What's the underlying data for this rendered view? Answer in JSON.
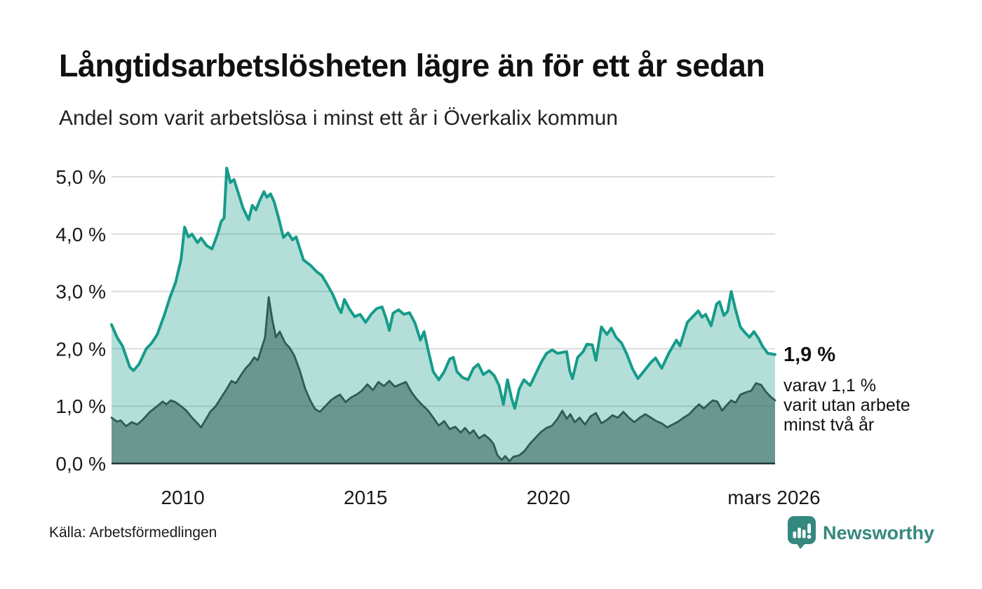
{
  "header": {
    "title": "Långtidsarbetslösheten lägre än för ett år sedan",
    "subtitle": "Andel som varit arbetslösa i minst ett år i Överkalix kommun"
  },
  "annotations": {
    "latest_value": "1,9 %",
    "sub_lines": [
      "varav 1,1 %",
      "varit utan arbete",
      "minst två år"
    ]
  },
  "footer": {
    "source": "Källa: Arbetsförmedlingen",
    "brand": "Newsworthy",
    "brand_logo_icon": "speech-bubble-bar-chart-icon"
  },
  "colors": {
    "accent": "#179b8a",
    "accent_fill": "#179b8a",
    "dark_series": "#2e5c55",
    "brand": "#35887f",
    "grid": "#dcdcdc",
    "axis": "#1f3733",
    "text": "#1a1a1a"
  },
  "chart_data": {
    "type": "area",
    "title": "Långtidsarbetslösheten lägre än för ett år sedan",
    "subtitle": "Andel som varit arbetslösa i minst ett år i Överkalix kommun",
    "xlabel": "",
    "ylabel": "",
    "unit": "%",
    "grid": true,
    "legend_position": "none",
    "x_domain": [
      2008.05,
      2026.2
    ],
    "ylim": [
      0,
      5.3
    ],
    "y_ticks": [
      {
        "value": 0,
        "label": "0,0 %"
      },
      {
        "value": 1,
        "label": "1,0 %"
      },
      {
        "value": 2,
        "label": "2,0 %"
      },
      {
        "value": 3,
        "label": "3,0 %"
      },
      {
        "value": 4,
        "label": "4,0 %"
      },
      {
        "value": 5,
        "label": "5,0 %"
      }
    ],
    "x_ticks": [
      {
        "value": 2010,
        "label": "2010"
      },
      {
        "value": 2015,
        "label": "2015"
      },
      {
        "value": 2020,
        "label": "2020"
      },
      {
        "value": 2026.17,
        "label": "mars 2026"
      }
    ],
    "series": [
      {
        "name": "Andel arbetslösa minst ett år",
        "line_color": "#179b8a",
        "fill_color": "#179b8a",
        "fill_opacity": 0.32,
        "end_label": "1,9 %",
        "points": [
          [
            2008.05,
            2.42
          ],
          [
            2008.2,
            2.2
          ],
          [
            2008.35,
            2.05
          ],
          [
            2008.55,
            1.68
          ],
          [
            2008.65,
            1.62
          ],
          [
            2008.8,
            1.73
          ],
          [
            2009.0,
            2.0
          ],
          [
            2009.15,
            2.1
          ],
          [
            2009.3,
            2.25
          ],
          [
            2009.5,
            2.6
          ],
          [
            2009.65,
            2.9
          ],
          [
            2009.8,
            3.15
          ],
          [
            2009.95,
            3.55
          ],
          [
            2010.05,
            4.12
          ],
          [
            2010.15,
            3.95
          ],
          [
            2010.25,
            4.0
          ],
          [
            2010.4,
            3.85
          ],
          [
            2010.5,
            3.93
          ],
          [
            2010.65,
            3.8
          ],
          [
            2010.8,
            3.74
          ],
          [
            2010.95,
            4.0
          ],
          [
            2011.05,
            4.22
          ],
          [
            2011.13,
            4.28
          ],
          [
            2011.2,
            5.15
          ],
          [
            2011.3,
            4.9
          ],
          [
            2011.4,
            4.95
          ],
          [
            2011.5,
            4.75
          ],
          [
            2011.65,
            4.45
          ],
          [
            2011.8,
            4.25
          ],
          [
            2011.9,
            4.5
          ],
          [
            2012.0,
            4.42
          ],
          [
            2012.1,
            4.58
          ],
          [
            2012.22,
            4.74
          ],
          [
            2012.3,
            4.64
          ],
          [
            2012.4,
            4.7
          ],
          [
            2012.5,
            4.56
          ],
          [
            2012.62,
            4.28
          ],
          [
            2012.75,
            3.94
          ],
          [
            2012.88,
            4.02
          ],
          [
            2013.0,
            3.9
          ],
          [
            2013.1,
            3.95
          ],
          [
            2013.3,
            3.55
          ],
          [
            2013.5,
            3.45
          ],
          [
            2013.65,
            3.35
          ],
          [
            2013.8,
            3.28
          ],
          [
            2013.95,
            3.12
          ],
          [
            2014.1,
            2.95
          ],
          [
            2014.25,
            2.72
          ],
          [
            2014.33,
            2.63
          ],
          [
            2014.42,
            2.86
          ],
          [
            2014.55,
            2.7
          ],
          [
            2014.7,
            2.56
          ],
          [
            2014.85,
            2.6
          ],
          [
            2015.0,
            2.46
          ],
          [
            2015.15,
            2.6
          ],
          [
            2015.3,
            2.7
          ],
          [
            2015.45,
            2.73
          ],
          [
            2015.55,
            2.55
          ],
          [
            2015.65,
            2.32
          ],
          [
            2015.75,
            2.62
          ],
          [
            2015.9,
            2.68
          ],
          [
            2016.05,
            2.6
          ],
          [
            2016.2,
            2.63
          ],
          [
            2016.35,
            2.45
          ],
          [
            2016.5,
            2.15
          ],
          [
            2016.6,
            2.3
          ],
          [
            2016.72,
            1.95
          ],
          [
            2016.85,
            1.6
          ],
          [
            2017.0,
            1.46
          ],
          [
            2017.15,
            1.6
          ],
          [
            2017.3,
            1.82
          ],
          [
            2017.4,
            1.85
          ],
          [
            2017.5,
            1.6
          ],
          [
            2017.65,
            1.5
          ],
          [
            2017.8,
            1.46
          ],
          [
            2017.95,
            1.66
          ],
          [
            2018.08,
            1.73
          ],
          [
            2018.22,
            1.55
          ],
          [
            2018.38,
            1.62
          ],
          [
            2018.52,
            1.53
          ],
          [
            2018.65,
            1.36
          ],
          [
            2018.77,
            1.03
          ],
          [
            2018.88,
            1.46
          ],
          [
            2019.0,
            1.12
          ],
          [
            2019.08,
            0.96
          ],
          [
            2019.2,
            1.3
          ],
          [
            2019.33,
            1.46
          ],
          [
            2019.5,
            1.36
          ],
          [
            2019.65,
            1.56
          ],
          [
            2019.8,
            1.76
          ],
          [
            2019.95,
            1.92
          ],
          [
            2020.1,
            1.98
          ],
          [
            2020.25,
            1.92
          ],
          [
            2020.4,
            1.94
          ],
          [
            2020.5,
            1.95
          ],
          [
            2020.58,
            1.62
          ],
          [
            2020.66,
            1.48
          ],
          [
            2020.8,
            1.85
          ],
          [
            2020.95,
            1.95
          ],
          [
            2021.05,
            2.08
          ],
          [
            2021.2,
            2.07
          ],
          [
            2021.3,
            1.8
          ],
          [
            2021.45,
            2.38
          ],
          [
            2021.6,
            2.25
          ],
          [
            2021.72,
            2.36
          ],
          [
            2021.85,
            2.2
          ],
          [
            2022.0,
            2.1
          ],
          [
            2022.15,
            1.9
          ],
          [
            2022.3,
            1.65
          ],
          [
            2022.45,
            1.48
          ],
          [
            2022.6,
            1.6
          ],
          [
            2022.8,
            1.76
          ],
          [
            2022.93,
            1.84
          ],
          [
            2023.1,
            1.66
          ],
          [
            2023.3,
            1.93
          ],
          [
            2023.5,
            2.15
          ],
          [
            2023.6,
            2.05
          ],
          [
            2023.8,
            2.46
          ],
          [
            2023.95,
            2.56
          ],
          [
            2024.1,
            2.66
          ],
          [
            2024.2,
            2.55
          ],
          [
            2024.3,
            2.6
          ],
          [
            2024.45,
            2.4
          ],
          [
            2024.6,
            2.78
          ],
          [
            2024.68,
            2.82
          ],
          [
            2024.8,
            2.58
          ],
          [
            2024.9,
            2.65
          ],
          [
            2025.0,
            3.0
          ],
          [
            2025.12,
            2.68
          ],
          [
            2025.25,
            2.38
          ],
          [
            2025.38,
            2.28
          ],
          [
            2025.5,
            2.2
          ],
          [
            2025.62,
            2.3
          ],
          [
            2025.75,
            2.18
          ],
          [
            2025.85,
            2.05
          ],
          [
            2026.0,
            1.92
          ],
          [
            2026.2,
            1.9
          ]
        ]
      },
      {
        "name": "varav utan arbete minst två år",
        "line_color": "#2e5c55",
        "fill_color": "#2e5c55",
        "fill_opacity": 0.55,
        "end_label": "1,1 %",
        "points": [
          [
            2008.05,
            0.8
          ],
          [
            2008.2,
            0.73
          ],
          [
            2008.3,
            0.75
          ],
          [
            2008.45,
            0.65
          ],
          [
            2008.6,
            0.72
          ],
          [
            2008.75,
            0.68
          ],
          [
            2008.9,
            0.76
          ],
          [
            2009.1,
            0.9
          ],
          [
            2009.3,
            1.0
          ],
          [
            2009.45,
            1.08
          ],
          [
            2009.55,
            1.03
          ],
          [
            2009.67,
            1.1
          ],
          [
            2009.8,
            1.07
          ],
          [
            2009.95,
            1.0
          ],
          [
            2010.1,
            0.92
          ],
          [
            2010.25,
            0.8
          ],
          [
            2010.4,
            0.7
          ],
          [
            2010.5,
            0.63
          ],
          [
            2010.62,
            0.76
          ],
          [
            2010.75,
            0.9
          ],
          [
            2010.9,
            1.0
          ],
          [
            2011.05,
            1.15
          ],
          [
            2011.2,
            1.3
          ],
          [
            2011.33,
            1.44
          ],
          [
            2011.45,
            1.4
          ],
          [
            2011.6,
            1.55
          ],
          [
            2011.72,
            1.66
          ],
          [
            2011.85,
            1.75
          ],
          [
            2011.95,
            1.85
          ],
          [
            2012.05,
            1.8
          ],
          [
            2012.15,
            2.0
          ],
          [
            2012.25,
            2.2
          ],
          [
            2012.35,
            2.9
          ],
          [
            2012.45,
            2.5
          ],
          [
            2012.55,
            2.2
          ],
          [
            2012.65,
            2.3
          ],
          [
            2012.8,
            2.1
          ],
          [
            2012.92,
            2.02
          ],
          [
            2013.05,
            1.88
          ],
          [
            2013.2,
            1.62
          ],
          [
            2013.35,
            1.3
          ],
          [
            2013.5,
            1.08
          ],
          [
            2013.62,
            0.95
          ],
          [
            2013.75,
            0.9
          ],
          [
            2013.9,
            1.0
          ],
          [
            2014.05,
            1.1
          ],
          [
            2014.18,
            1.16
          ],
          [
            2014.3,
            1.2
          ],
          [
            2014.45,
            1.07
          ],
          [
            2014.6,
            1.15
          ],
          [
            2014.75,
            1.2
          ],
          [
            2014.9,
            1.27
          ],
          [
            2015.05,
            1.38
          ],
          [
            2015.2,
            1.28
          ],
          [
            2015.35,
            1.42
          ],
          [
            2015.5,
            1.35
          ],
          [
            2015.65,
            1.44
          ],
          [
            2015.8,
            1.34
          ],
          [
            2015.95,
            1.38
          ],
          [
            2016.1,
            1.42
          ],
          [
            2016.25,
            1.25
          ],
          [
            2016.4,
            1.12
          ],
          [
            2016.55,
            1.02
          ],
          [
            2016.7,
            0.93
          ],
          [
            2016.85,
            0.8
          ],
          [
            2017.0,
            0.66
          ],
          [
            2017.15,
            0.74
          ],
          [
            2017.3,
            0.6
          ],
          [
            2017.45,
            0.64
          ],
          [
            2017.6,
            0.54
          ],
          [
            2017.72,
            0.62
          ],
          [
            2017.85,
            0.52
          ],
          [
            2017.95,
            0.58
          ],
          [
            2018.1,
            0.44
          ],
          [
            2018.25,
            0.5
          ],
          [
            2018.4,
            0.42
          ],
          [
            2018.5,
            0.34
          ],
          [
            2018.6,
            0.15
          ],
          [
            2018.72,
            0.06
          ],
          [
            2018.82,
            0.13
          ],
          [
            2018.93,
            0.04
          ],
          [
            2019.05,
            0.12
          ],
          [
            2019.2,
            0.14
          ],
          [
            2019.35,
            0.22
          ],
          [
            2019.5,
            0.35
          ],
          [
            2019.65,
            0.45
          ],
          [
            2019.8,
            0.55
          ],
          [
            2019.95,
            0.62
          ],
          [
            2020.1,
            0.66
          ],
          [
            2020.25,
            0.78
          ],
          [
            2020.38,
            0.92
          ],
          [
            2020.5,
            0.78
          ],
          [
            2020.6,
            0.86
          ],
          [
            2020.72,
            0.72
          ],
          [
            2020.85,
            0.8
          ],
          [
            2021.0,
            0.68
          ],
          [
            2021.15,
            0.82
          ],
          [
            2021.3,
            0.88
          ],
          [
            2021.45,
            0.7
          ],
          [
            2021.6,
            0.76
          ],
          [
            2021.75,
            0.84
          ],
          [
            2021.9,
            0.8
          ],
          [
            2022.05,
            0.9
          ],
          [
            2022.2,
            0.8
          ],
          [
            2022.35,
            0.72
          ],
          [
            2022.5,
            0.8
          ],
          [
            2022.65,
            0.86
          ],
          [
            2022.8,
            0.8
          ],
          [
            2022.95,
            0.74
          ],
          [
            2023.1,
            0.7
          ],
          [
            2023.25,
            0.63
          ],
          [
            2023.4,
            0.68
          ],
          [
            2023.55,
            0.73
          ],
          [
            2023.7,
            0.8
          ],
          [
            2023.85,
            0.86
          ],
          [
            2024.0,
            0.96
          ],
          [
            2024.12,
            1.03
          ],
          [
            2024.25,
            0.96
          ],
          [
            2024.4,
            1.05
          ],
          [
            2024.5,
            1.1
          ],
          [
            2024.62,
            1.08
          ],
          [
            2024.75,
            0.92
          ],
          [
            2024.88,
            1.02
          ],
          [
            2025.0,
            1.1
          ],
          [
            2025.12,
            1.06
          ],
          [
            2025.25,
            1.2
          ],
          [
            2025.4,
            1.24
          ],
          [
            2025.55,
            1.27
          ],
          [
            2025.68,
            1.4
          ],
          [
            2025.82,
            1.37
          ],
          [
            2025.95,
            1.25
          ],
          [
            2026.1,
            1.15
          ],
          [
            2026.2,
            1.1
          ]
        ]
      }
    ]
  }
}
